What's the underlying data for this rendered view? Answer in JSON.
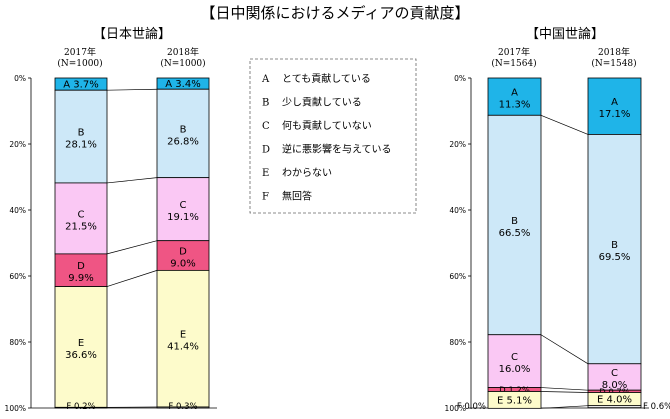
{
  "title": "【日中関係におけるメディアの貢献度】",
  "legend": [
    {
      "key": "A",
      "label": "とても貢献している"
    },
    {
      "key": "B",
      "label": "少し貢献している"
    },
    {
      "key": "C",
      "label": "何も貢献していない"
    },
    {
      "key": "D",
      "label": "逆に悪影響を与えている"
    },
    {
      "key": "E",
      "label": "わからない"
    },
    {
      "key": "F",
      "label": "無回答"
    }
  ],
  "colors": {
    "A": "#1fb4e8",
    "B": "#cde8f8",
    "C": "#fac8f4",
    "D": "#ef5584",
    "E": "#fdfbcb",
    "F": "#ffffff"
  },
  "chart_data": [
    {
      "type": "bar",
      "stacked": true,
      "title": "【日本世論】",
      "categories": [
        "2017年\n(N=1000)",
        "2018年\n(N=1000)"
      ],
      "series": [
        {
          "name": "A",
          "values": [
            3.7,
            3.4
          ]
        },
        {
          "name": "B",
          "values": [
            28.1,
            26.8
          ]
        },
        {
          "name": "C",
          "values": [
            21.5,
            19.1
          ]
        },
        {
          "name": "D",
          "values": [
            9.9,
            9.0
          ]
        },
        {
          "name": "E",
          "values": [
            36.6,
            41.4
          ]
        },
        {
          "name": "F",
          "values": [
            0.2,
            0.3
          ]
        }
      ],
      "ylim": [
        0,
        100
      ],
      "yticks": [
        "0%",
        "20%",
        "40%",
        "60%",
        "80%",
        "100%"
      ]
    },
    {
      "type": "bar",
      "stacked": true,
      "title": "【中国世論】",
      "categories": [
        "2017年\n(N=1564)",
        "2018年\n(N=1548)"
      ],
      "series": [
        {
          "name": "A",
          "values": [
            11.3,
            17.1
          ]
        },
        {
          "name": "B",
          "values": [
            66.5,
            69.5
          ]
        },
        {
          "name": "C",
          "values": [
            16.0,
            8.0
          ]
        },
        {
          "name": "D",
          "values": [
            1.2,
            0.7
          ]
        },
        {
          "name": "E",
          "values": [
            5.1,
            4.0
          ]
        },
        {
          "name": "F",
          "values": [
            0.0,
            0.6
          ]
        }
      ],
      "ylim": [
        0,
        100
      ],
      "yticks": [
        "0%",
        "20%",
        "40%",
        "60%",
        "80%",
        "100%"
      ]
    }
  ]
}
